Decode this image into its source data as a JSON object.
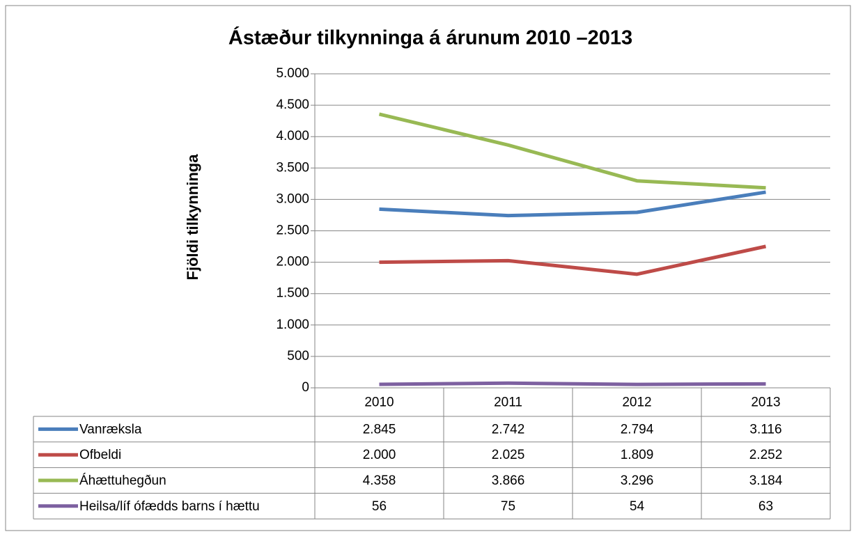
{
  "chart_data": {
    "type": "line",
    "title": "Ástæður tilkynninga á árunum 2010 –2013",
    "y_label": "Fjöldi tilkynninga",
    "categories": [
      "2010",
      "2011",
      "2012",
      "2013"
    ],
    "series": [
      {
        "name": "Vanræksla",
        "color": "#4a7ebb",
        "values": [
          2845,
          2742,
          2794,
          3116
        ],
        "value_labels": [
          "2.845",
          "2.742",
          "2.794",
          "3.116"
        ]
      },
      {
        "name": "Ofbeldi",
        "color": "#be4b48",
        "values": [
          2000,
          2025,
          1809,
          2252
        ],
        "value_labels": [
          "2.000",
          "2.025",
          "1.809",
          "2.252"
        ]
      },
      {
        "name": "Áhættuhegðun",
        "color": "#98b954",
        "values": [
          4358,
          3866,
          3296,
          3184
        ],
        "value_labels": [
          "4.358",
          "3.866",
          "3.296",
          "3.184"
        ]
      },
      {
        "name": "Heilsa/líf ófædds barns í hættu",
        "color": "#7d60a0",
        "values": [
          56,
          75,
          54,
          63
        ],
        "value_labels": [
          "56",
          "75",
          "54",
          "63"
        ]
      }
    ],
    "ylim": [
      0,
      5000
    ],
    "yticks": [
      0,
      500,
      {
        "value": 1000,
        "label": "1.000"
      },
      {
        "value": 1500,
        "label": "1.500"
      },
      {
        "value": 2000,
        "label": "2.000"
      },
      {
        "value": 2500,
        "label": "2.500"
      },
      {
        "value": 3000,
        "label": "3.000"
      },
      {
        "value": 3500,
        "label": "3.500"
      },
      {
        "value": 4000,
        "label": "4.000"
      },
      {
        "value": 4500,
        "label": "4.500"
      },
      {
        "value": 5000,
        "label": "5.000"
      }
    ],
    "grid": true
  }
}
